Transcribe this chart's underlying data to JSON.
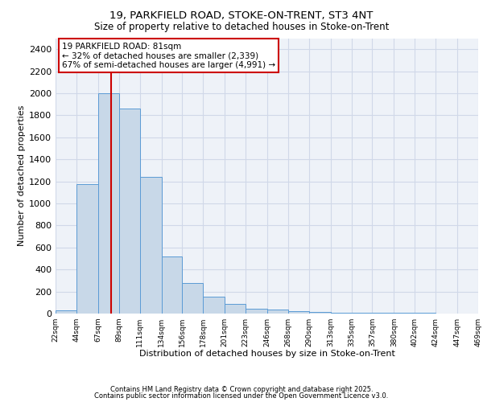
{
  "title1": "19, PARKFIELD ROAD, STOKE-ON-TRENT, ST3 4NT",
  "title2": "Size of property relative to detached houses in Stoke-on-Trent",
  "xlabel": "Distribution of detached houses by size in Stoke-on-Trent",
  "ylabel": "Number of detached properties",
  "bin_labels": [
    "22sqm",
    "44sqm",
    "67sqm",
    "89sqm",
    "111sqm",
    "134sqm",
    "156sqm",
    "178sqm",
    "201sqm",
    "223sqm",
    "246sqm",
    "268sqm",
    "290sqm",
    "313sqm",
    "335sqm",
    "357sqm",
    "380sqm",
    "402sqm",
    "424sqm",
    "447sqm",
    "469sqm"
  ],
  "bin_edges": [
    22,
    44,
    67,
    89,
    111,
    134,
    156,
    178,
    201,
    223,
    246,
    268,
    290,
    313,
    335,
    357,
    380,
    402,
    424,
    447,
    469
  ],
  "bar_heights": [
    30,
    1175,
    2000,
    1860,
    1240,
    520,
    275,
    150,
    90,
    45,
    40,
    20,
    15,
    8,
    5,
    5,
    5,
    5,
    3,
    3
  ],
  "bar_color": "#c8d8e8",
  "bar_edge_color": "#5b9bd5",
  "grid_color": "#d0d8e8",
  "bg_color": "#eef2f8",
  "property_size": 81,
  "vline_color": "#cc0000",
  "annotation_line1": "19 PARKFIELD ROAD: 81sqm",
  "annotation_line2": "← 32% of detached houses are smaller (2,339)",
  "annotation_line3": "67% of semi-detached houses are larger (4,991) →",
  "annotation_box_color": "#ffffff",
  "annotation_box_edge": "#cc0000",
  "ylim": [
    0,
    2500
  ],
  "yticks": [
    0,
    200,
    400,
    600,
    800,
    1000,
    1200,
    1400,
    1600,
    1800,
    2000,
    2200,
    2400
  ],
  "footer1": "Contains HM Land Registry data © Crown copyright and database right 2025.",
  "footer2": "Contains public sector information licensed under the Open Government Licence v3.0."
}
